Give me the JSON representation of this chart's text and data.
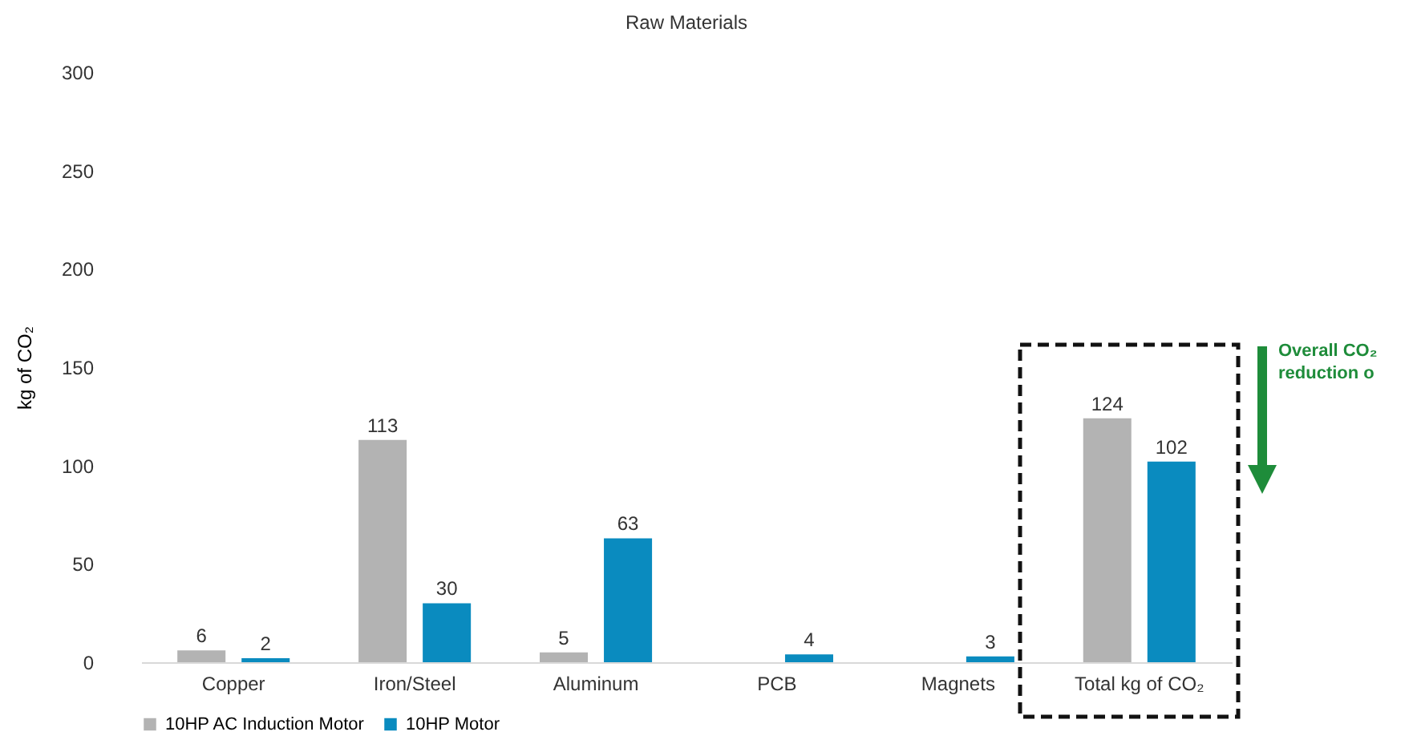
{
  "chart_data": {
    "type": "bar",
    "title": "Raw Materials",
    "ylabel": "kg of CO₂",
    "categories": [
      "Copper",
      "Iron/Steel",
      "Aluminum",
      "PCB",
      "Magnets",
      "Total kg of CO₂"
    ],
    "series": [
      {
        "name": "10HP AC Induction Motor",
        "color": "#b3b3b3",
        "values": [
          6,
          113,
          5,
          null,
          null,
          124
        ]
      },
      {
        "name": "10HP Motor",
        "color": "#0a8bbf",
        "values": [
          2,
          30,
          63,
          4,
          3,
          102
        ]
      }
    ],
    "ylim": [
      0,
      300
    ],
    "yticks": [
      0,
      50,
      100,
      150,
      200,
      250,
      300
    ],
    "data_labels": true,
    "grid": false,
    "legend": "bottom",
    "annotations": [
      "Overall CO₂ reduction o"
    ]
  }
}
